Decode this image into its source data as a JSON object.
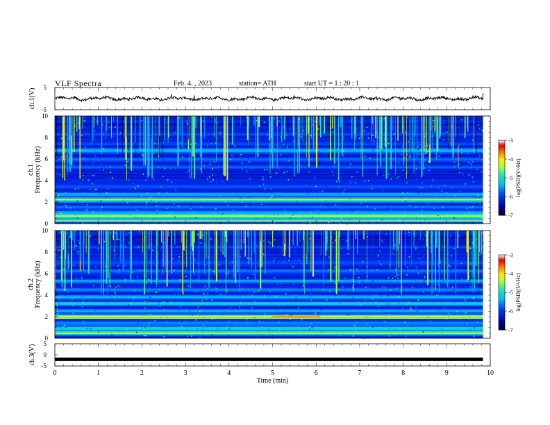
{
  "header": {
    "title": "VLF  Spectra",
    "date": "Feb. 4.  , 2023",
    "station": "station= ATH",
    "start": "start  UT  =    1  : 20 : 1"
  },
  "chart_data": [
    {
      "type": "line",
      "panel": "ch1-waveform",
      "ylabel": "ch.1(V)",
      "ylim": [
        -5,
        5
      ],
      "yticks": [
        "5",
        "-5"
      ],
      "xlim": [
        0,
        10
      ],
      "data_extent_min": 9.83,
      "series": [
        {
          "values_summary": "noisy waveform centered near 0 V, amplitude ~1 V"
        }
      ]
    },
    {
      "type": "heatmap",
      "panel": "ch1-spectrogram",
      "ylabel": "ch.1\nFrequency (kHz)",
      "ylabel_line1": "ch.1",
      "ylabel_line2": "Frequency  (kHz)",
      "ylim": [
        0,
        10
      ],
      "yticks": [
        "0",
        "2",
        "4",
        "6",
        "8",
        "10"
      ],
      "xlim": [
        0,
        10
      ],
      "colorbar": {
        "label": "log(PSD)(V²/Hz)",
        "range": [
          -7,
          -3
        ],
        "ticks": [
          "-3",
          "-4",
          "-5",
          "-6",
          "-7"
        ]
      },
      "bands_khz": [
        {
          "freq": 0.3,
          "level": -5.0
        },
        {
          "freq": 0.7,
          "level": -4.3
        },
        {
          "freq": 1.0,
          "level": -5.3
        },
        {
          "freq": 1.5,
          "level": -5.5
        },
        {
          "freq": 2.2,
          "level": -4.5
        },
        {
          "freq": 2.7,
          "level": -5.2
        },
        {
          "freq": 3.4,
          "level": -5.6
        },
        {
          "freq": 4.4,
          "level": -6.8
        },
        {
          "freq": 5.2,
          "level": -5.8
        },
        {
          "freq": 6.0,
          "level": -5.6
        },
        {
          "freq": 6.8,
          "level": -5.2
        },
        {
          "freq": 7.4,
          "level": -5.9
        },
        {
          "freq": 8.3,
          "level": -5.7
        }
      ]
    },
    {
      "type": "heatmap",
      "panel": "ch2-spectrogram",
      "ylabel_line1": "ch.2",
      "ylabel_line2": "Frequency  (kHz)",
      "ylim": [
        0,
        10
      ],
      "yticks": [
        "0",
        "2",
        "4",
        "6",
        "8",
        "10"
      ],
      "xlim": [
        0,
        10
      ],
      "colorbar": {
        "label": "log(PSD)(V²/Hz)",
        "range": [
          -7,
          -3
        ],
        "ticks": [
          "-3",
          "-4",
          "-5",
          "-6",
          "-7"
        ]
      },
      "bands_khz": [
        {
          "freq": 0.5,
          "level": -4.4
        },
        {
          "freq": 0.9,
          "level": -5.0
        },
        {
          "freq": 1.4,
          "level": -5.3
        },
        {
          "freq": 2.0,
          "level": -4.3
        },
        {
          "freq": 2.5,
          "level": -5.4
        },
        {
          "freq": 3.2,
          "level": -5.0
        },
        {
          "freq": 3.8,
          "level": -5.2
        },
        {
          "freq": 4.5,
          "level": -5.6
        },
        {
          "freq": 5.3,
          "level": -5.4
        },
        {
          "freq": 6.2,
          "level": -5.5
        },
        {
          "freq": 7.0,
          "level": -5.7
        },
        {
          "freq": 8.5,
          "level": -5.8
        }
      ]
    },
    {
      "type": "line",
      "panel": "ch3-waveform",
      "ylabel": "ch.3(V)",
      "ylim": [
        -5,
        5
      ],
      "yticks": [
        "5",
        "0",
        "-5"
      ],
      "xlim": [
        0,
        10
      ],
      "xlabel": "Time  (min)",
      "xticks": [
        "0",
        "1",
        "2",
        "3",
        "4",
        "5",
        "6",
        "7",
        "8",
        "9",
        "10"
      ],
      "series": [
        {
          "values_summary": "flat thick line near -2 V"
        }
      ]
    }
  ]
}
